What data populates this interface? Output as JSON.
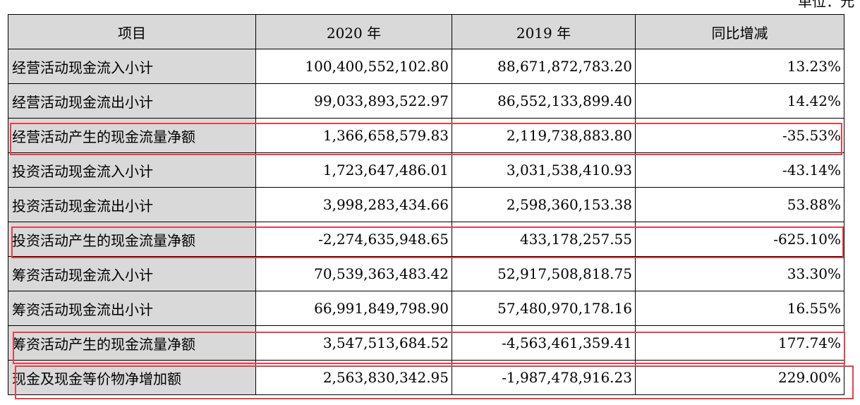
{
  "unit": "单位：元",
  "header": {
    "item": "项目",
    "y2020": "2020 年",
    "y2019": "2019 年",
    "yoy": "同比增减"
  },
  "rows": [
    {
      "item": "经营活动现金流入小计",
      "y2020": "100,400,552,102.80",
      "y2019": "88,671,872,783.20",
      "yoy": "13.23%"
    },
    {
      "item": "经营活动现金流出小计",
      "y2020": "99,033,893,522.97",
      "y2019": "86,552,133,899.40",
      "yoy": "14.42%"
    },
    {
      "item": "经营活动产生的现金流量净额",
      "y2020": "1,366,658,579.83",
      "y2019": "2,119,738,883.80",
      "yoy": "-35.53%"
    },
    {
      "item": "投资活动现金流入小计",
      "y2020": "1,723,647,486.01",
      "y2019": "3,031,538,410.93",
      "yoy": "-43.14%"
    },
    {
      "item": "投资活动现金流出小计",
      "y2020": "3,998,283,434.66",
      "y2019": "2,598,360,153.38",
      "yoy": "53.88%"
    },
    {
      "item": "投资活动产生的现金流量净额",
      "y2020": "-2,274,635,948.65",
      "y2019": "433,178,257.55",
      "yoy": "-625.10%"
    },
    {
      "item": "筹资活动现金流入小计",
      "y2020": "70,539,363,483.42",
      "y2019": "52,917,508,818.75",
      "yoy": "33.30%"
    },
    {
      "item": "筹资活动现金流出小计",
      "y2020": "66,991,849,798.90",
      "y2019": "57,480,970,178.16",
      "yoy": "16.55%"
    },
    {
      "item": "筹资活动产生的现金流量净额",
      "y2020": "3,547,513,684.52",
      "y2019": "-4,563,461,359.41",
      "yoy": "177.74%"
    },
    {
      "item": "现金及现金等价物净增加额",
      "y2020": "2,563,830,342.95",
      "y2019": "-1,987,478,916.23",
      "yoy": "229.00%"
    }
  ],
  "highlight_color": "#e8404a"
}
